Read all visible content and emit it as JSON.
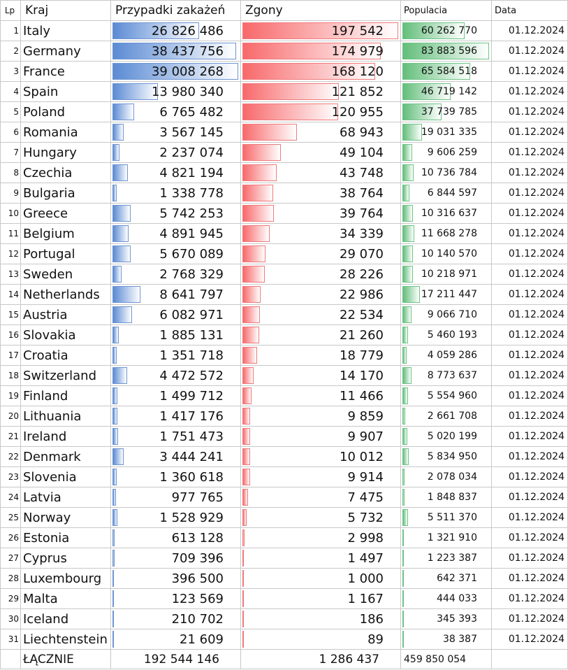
{
  "header": {
    "lp": "Lp",
    "kraj": "Kraj",
    "cases": "Przypadki zakażeń",
    "deaths": "Zgony",
    "population": "Populacia",
    "date": "Data"
  },
  "colors": {
    "cases_bar": "#5b8bd4",
    "deaths_bar": "#f8696b",
    "population_bar": "#63be7b"
  },
  "scale": {
    "cases_max": 39008268,
    "deaths_max": 197542,
    "population_max": 83883596
  },
  "rows": [
    {
      "lp": "1",
      "country": "Italy",
      "cases": "26 826 486",
      "cases_n": 26826486,
      "deaths": "197 542",
      "deaths_n": 197542,
      "population": "60 262 770",
      "population_n": 60262770,
      "date": "01.12.2024"
    },
    {
      "lp": "2",
      "country": "Germany",
      "cases": "38 437 756",
      "cases_n": 38437756,
      "deaths": "174 979",
      "deaths_n": 174979,
      "population": "83 883 596",
      "population_n": 83883596,
      "date": "01.12.2024"
    },
    {
      "lp": "3",
      "country": "France",
      "cases": "39 008 268",
      "cases_n": 39008268,
      "deaths": "168 120",
      "deaths_n": 168120,
      "population": "65 584 518",
      "population_n": 65584518,
      "date": "01.12.2024"
    },
    {
      "lp": "4",
      "country": "Spain",
      "cases": "13 980 340",
      "cases_n": 13980340,
      "deaths": "121 852",
      "deaths_n": 121852,
      "population": "46 719 142",
      "population_n": 46719142,
      "date": "01.12.2024"
    },
    {
      "lp": "5",
      "country": "Poland",
      "cases": "6 765 482",
      "cases_n": 6765482,
      "deaths": "120 955",
      "deaths_n": 120955,
      "population": "37 739 785",
      "population_n": 37739785,
      "date": "01.12.2024"
    },
    {
      "lp": "6",
      "country": "Romania",
      "cases": "3 567 145",
      "cases_n": 3567145,
      "deaths": "68 943",
      "deaths_n": 68943,
      "population": "19 031 335",
      "population_n": 19031335,
      "date": "01.12.2024"
    },
    {
      "lp": "7",
      "country": "Hungary",
      "cases": "2 237 074",
      "cases_n": 2237074,
      "deaths": "49 104",
      "deaths_n": 49104,
      "population": "9 606 259",
      "population_n": 9606259,
      "date": "01.12.2024"
    },
    {
      "lp": "8",
      "country": "Czechia",
      "cases": "4 821 194",
      "cases_n": 4821194,
      "deaths": "43 748",
      "deaths_n": 43748,
      "population": "10 736 784",
      "population_n": 10736784,
      "date": "01.12.2024"
    },
    {
      "lp": "9",
      "country": "Bulgaria",
      "cases": "1 338 778",
      "cases_n": 1338778,
      "deaths": "38 764",
      "deaths_n": 38764,
      "population": "6 844 597",
      "population_n": 6844597,
      "date": "01.12.2024"
    },
    {
      "lp": "10",
      "country": "Greece",
      "cases": "5 742 253",
      "cases_n": 5742253,
      "deaths": "39 764",
      "deaths_n": 39764,
      "population": "10 316 637",
      "population_n": 10316637,
      "date": "01.12.2024"
    },
    {
      "lp": "11",
      "country": "Belgium",
      "cases": "4 891 945",
      "cases_n": 4891945,
      "deaths": "34 339",
      "deaths_n": 34339,
      "population": "11 668 278",
      "population_n": 11668278,
      "date": "01.12.2024"
    },
    {
      "lp": "12",
      "country": "Portugal",
      "cases": "5 670 089",
      "cases_n": 5670089,
      "deaths": "29 070",
      "deaths_n": 29070,
      "population": "10 140 570",
      "population_n": 10140570,
      "date": "01.12.2024"
    },
    {
      "lp": "13",
      "country": "Sweden",
      "cases": "2 768 329",
      "cases_n": 2768329,
      "deaths": "28 226",
      "deaths_n": 28226,
      "population": "10 218 971",
      "population_n": 10218971,
      "date": "01.12.2024"
    },
    {
      "lp": "14",
      "country": "Netherlands",
      "cases": "8 641 797",
      "cases_n": 8641797,
      "deaths": "22 986",
      "deaths_n": 22986,
      "population": "17 211 447",
      "population_n": 17211447,
      "date": "01.12.2024"
    },
    {
      "lp": "15",
      "country": "Austria",
      "cases": "6 082 971",
      "cases_n": 6082971,
      "deaths": "22 534",
      "deaths_n": 22534,
      "population": "9 066 710",
      "population_n": 9066710,
      "date": "01.12.2024"
    },
    {
      "lp": "16",
      "country": "Slovakia",
      "cases": "1 885 131",
      "cases_n": 1885131,
      "deaths": "21 260",
      "deaths_n": 21260,
      "population": "5 460 193",
      "population_n": 5460193,
      "date": "01.12.2024"
    },
    {
      "lp": "17",
      "country": "Croatia",
      "cases": "1 351 718",
      "cases_n": 1351718,
      "deaths": "18 779",
      "deaths_n": 18779,
      "population": "4 059 286",
      "population_n": 4059286,
      "date": "01.12.2024"
    },
    {
      "lp": "18",
      "country": "Switzerland",
      "cases": "4 472 572",
      "cases_n": 4472572,
      "deaths": "14 170",
      "deaths_n": 14170,
      "population": "8 773 637",
      "population_n": 8773637,
      "date": "01.12.2024"
    },
    {
      "lp": "19",
      "country": "Finland",
      "cases": "1 499 712",
      "cases_n": 1499712,
      "deaths": "11 466",
      "deaths_n": 11466,
      "population": "5 554 960",
      "population_n": 5554960,
      "date": "01.12.2024"
    },
    {
      "lp": "20",
      "country": "Lithuania",
      "cases": "1 417 176",
      "cases_n": 1417176,
      "deaths": "9 859",
      "deaths_n": 9859,
      "population": "2 661 708",
      "population_n": 2661708,
      "date": "01.12.2024"
    },
    {
      "lp": "21",
      "country": "Ireland",
      "cases": "1 751 473",
      "cases_n": 1751473,
      "deaths": "9 907",
      "deaths_n": 9907,
      "population": "5 020 199",
      "population_n": 5020199,
      "date": "01.12.2024"
    },
    {
      "lp": "22",
      "country": "Denmark",
      "cases": "3 444 241",
      "cases_n": 3444241,
      "deaths": "10 012",
      "deaths_n": 10012,
      "population": "5 834 950",
      "population_n": 5834950,
      "date": "01.12.2024"
    },
    {
      "lp": "23",
      "country": "Slovenia",
      "cases": "1 360 618",
      "cases_n": 1360618,
      "deaths": "9 914",
      "deaths_n": 9914,
      "population": "2 078 034",
      "population_n": 2078034,
      "date": "01.12.2024"
    },
    {
      "lp": "24",
      "country": "Latvia",
      "cases": "977 765",
      "cases_n": 977765,
      "deaths": "7 475",
      "deaths_n": 7475,
      "population": "1 848 837",
      "population_n": 1848837,
      "date": "01.12.2024"
    },
    {
      "lp": "25",
      "country": "Norway",
      "cases": "1 528 929",
      "cases_n": 1528929,
      "deaths": "5 732",
      "deaths_n": 5732,
      "population": "5 511 370",
      "population_n": 5511370,
      "date": "01.12.2024"
    },
    {
      "lp": "26",
      "country": "Estonia",
      "cases": "613 128",
      "cases_n": 613128,
      "deaths": "2 998",
      "deaths_n": 2998,
      "population": "1 321 910",
      "population_n": 1321910,
      "date": "01.12.2024"
    },
    {
      "lp": "27",
      "country": "Cyprus",
      "cases": "709 396",
      "cases_n": 709396,
      "deaths": "1 497",
      "deaths_n": 1497,
      "population": "1 223 387",
      "population_n": 1223387,
      "date": "01.12.2024"
    },
    {
      "lp": "28",
      "country": "Luxembourg",
      "cases": "396 500",
      "cases_n": 396500,
      "deaths": "1 000",
      "deaths_n": 1000,
      "population": "642 371",
      "population_n": 642371,
      "date": "01.12.2024"
    },
    {
      "lp": "29",
      "country": "Malta",
      "cases": "123 569",
      "cases_n": 123569,
      "deaths": "1 167",
      "deaths_n": 1167,
      "population": "444 033",
      "population_n": 444033,
      "date": "01.12.2024"
    },
    {
      "lp": "30",
      "country": "Iceland",
      "cases": "210 702",
      "cases_n": 210702,
      "deaths": "186",
      "deaths_n": 186,
      "population": "345 393",
      "population_n": 345393,
      "date": "01.12.2024"
    },
    {
      "lp": "31",
      "country": "Liechtenstein",
      "cases": "21 609",
      "cases_n": 21609,
      "deaths": "89",
      "deaths_n": 89,
      "population": "38 387",
      "population_n": 38387,
      "date": "01.12.2024"
    }
  ],
  "total": {
    "label": "ŁĄCZNIE",
    "cases": "192 544 146",
    "deaths": "1 286 437",
    "population": "459 850 054"
  }
}
